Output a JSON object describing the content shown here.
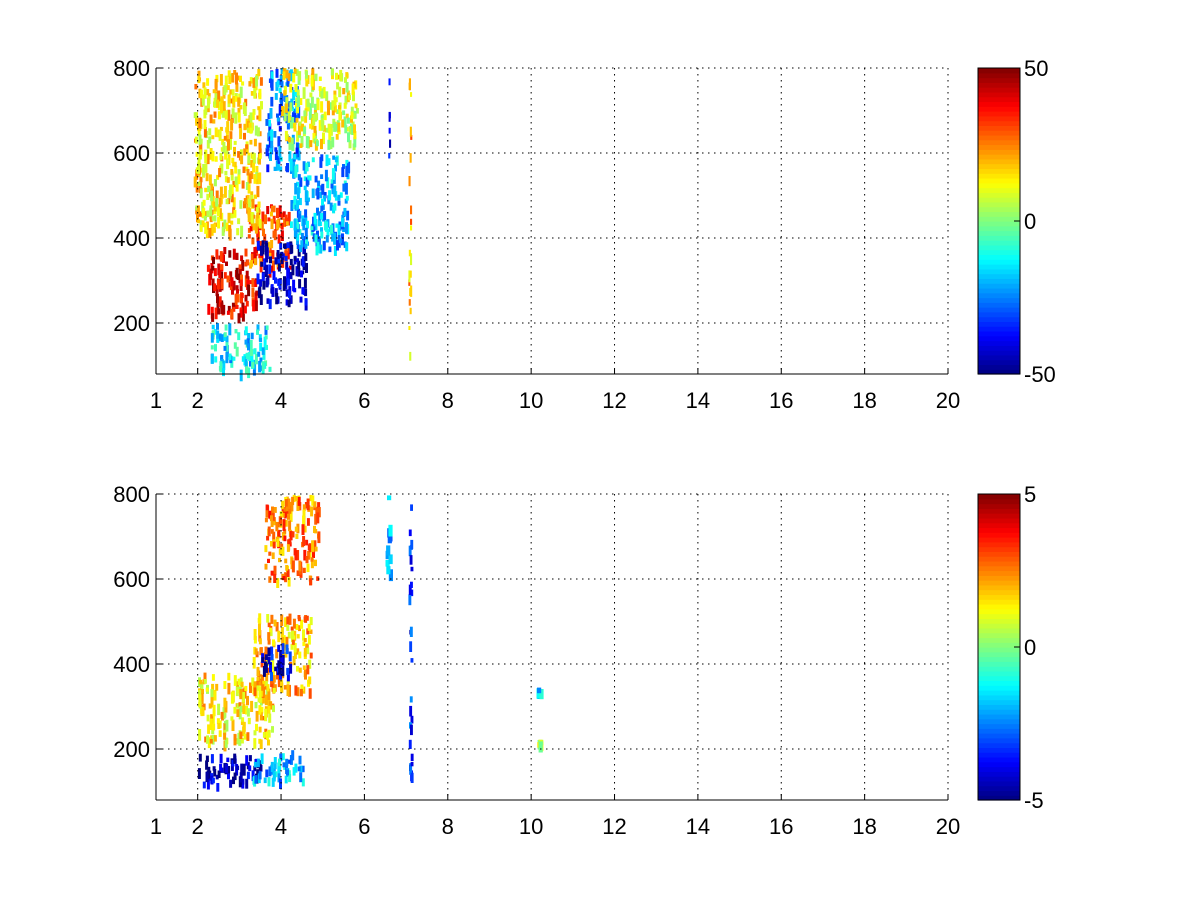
{
  "chart_data": [
    {
      "type": "heatmap",
      "title": "",
      "xlabel": "",
      "ylabel": "",
      "xlim": [
        1,
        20
      ],
      "ylim": [
        80,
        800
      ],
      "x_ticks": [
        1,
        2,
        4,
        6,
        8,
        10,
        12,
        14,
        16,
        18,
        20
      ],
      "y_ticks": [
        200,
        400,
        600,
        800
      ],
      "grid": true,
      "colormap": "jet",
      "colorbar": {
        "clim": [
          -50,
          50
        ],
        "ticks": [
          -50,
          0,
          50
        ],
        "position": "right"
      },
      "features": [
        {
          "x_range": [
            2.2,
            3.4
          ],
          "y_range": [
            220,
            380
          ],
          "value": 40
        },
        {
          "x_range": [
            3.2,
            4.2
          ],
          "y_range": [
            330,
            480
          ],
          "value": 30
        },
        {
          "x_range": [
            3.4,
            4.6
          ],
          "y_range": [
            250,
            400
          ],
          "value": -45
        },
        {
          "x_range": [
            3.6,
            4.4
          ],
          "y_range": [
            560,
            800
          ],
          "value": -25
        },
        {
          "x_range": [
            4.2,
            5.6
          ],
          "y_range": [
            380,
            600
          ],
          "value": -20
        },
        {
          "x_range": [
            1.9,
            3.5
          ],
          "y_range": [
            420,
            800
          ],
          "value": 15
        },
        {
          "x_range": [
            2.3,
            3.7
          ],
          "y_range": [
            90,
            200
          ],
          "value": -15
        },
        {
          "x_range": [
            4.0,
            5.8
          ],
          "y_range": [
            620,
            800
          ],
          "value": 10
        },
        {
          "x_range": [
            6.55,
            6.6
          ],
          "y_range": [
            600,
            800
          ],
          "value": -35
        },
        {
          "x_range": [
            7.05,
            7.1
          ],
          "y_range": [
            80,
            800
          ],
          "value": 20
        }
      ]
    },
    {
      "type": "heatmap",
      "title": "",
      "xlabel": "",
      "ylabel": "",
      "xlim": [
        1,
        20
      ],
      "ylim": [
        80,
        800
      ],
      "x_ticks": [
        1,
        2,
        4,
        6,
        8,
        10,
        12,
        14,
        16,
        18,
        20
      ],
      "y_ticks": [
        200,
        400,
        600,
        800
      ],
      "grid": true,
      "colormap": "jet",
      "colorbar": {
        "clim": [
          -5,
          5
        ],
        "ticks": [
          -5,
          0,
          5
        ],
        "position": "right"
      },
      "features": [
        {
          "x_range": [
            2.0,
            3.8
          ],
          "y_range": [
            220,
            380
          ],
          "value": 1.5
        },
        {
          "x_range": [
            3.3,
            4.7
          ],
          "y_range": [
            340,
            520
          ],
          "value": 2
        },
        {
          "x_range": [
            3.5,
            4.2
          ],
          "y_range": [
            380,
            460
          ],
          "value": -4
        },
        {
          "x_range": [
            3.6,
            4.9
          ],
          "y_range": [
            600,
            800
          ],
          "value": 2.5
        },
        {
          "x_range": [
            2.0,
            3.5
          ],
          "y_range": [
            120,
            190
          ],
          "value": -4.5
        },
        {
          "x_range": [
            3.3,
            4.5
          ],
          "y_range": [
            130,
            200
          ],
          "value": -2
        },
        {
          "x_range": [
            6.5,
            6.6
          ],
          "y_range": [
            620,
            800
          ],
          "value": -2
        },
        {
          "x_range": [
            7.05,
            7.12
          ],
          "y_range": [
            140,
            790
          ],
          "value": -3.5
        },
        {
          "x_range": [
            10.1,
            10.2
          ],
          "y_range": [
            335,
            345
          ],
          "value": -2
        },
        {
          "x_range": [
            10.1,
            10.2
          ],
          "y_range": [
            215,
            225
          ],
          "value": 0.5
        }
      ]
    }
  ]
}
